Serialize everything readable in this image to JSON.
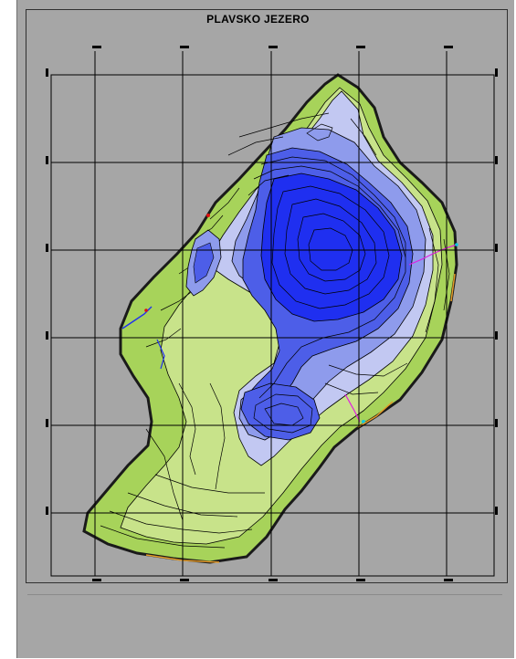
{
  "map": {
    "title": "PLAVSKO JEZERO",
    "colors": {
      "background": "#a6a6a6",
      "deep_blue": "#1f2ff0",
      "mid_blue": "#4d5ee8",
      "light_blue": "#8e9bec",
      "pale_blue": "#c2c8f2",
      "shore_green": "#a7d35a",
      "light_green": "#c8e38a",
      "contour": "#000000",
      "shoreline_dark": "#1a1a1a",
      "grid_line": "#000000"
    }
  }
}
